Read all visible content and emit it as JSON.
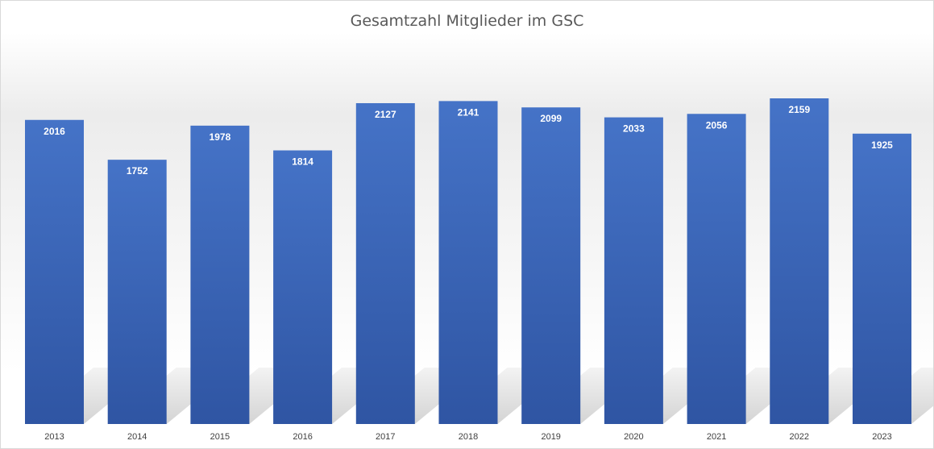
{
  "chart_data": {
    "type": "bar",
    "title": "Gesamtzahl Mitglieder im GSC",
    "xlabel": "",
    "ylabel": "",
    "categories": [
      "2013",
      "2014",
      "2015",
      "2016",
      "2017",
      "2018",
      "2019",
      "2020",
      "2021",
      "2022",
      "2023"
    ],
    "series": [
      {
        "values": [
          2016,
          1752,
          1978,
          1814,
          2127,
          2141,
          2099,
          2033,
          2056,
          2159,
          1925
        ]
      }
    ],
    "ylim": [
      0,
      2159
    ],
    "grid": false,
    "legend": "none",
    "data_labels": true,
    "colors": {
      "bar_top": "#4573c7",
      "bar_bottom": "#2f55a3",
      "label_text": "#ffffff",
      "tick_text": "#404040",
      "shadow": "#cfcfcf"
    }
  }
}
